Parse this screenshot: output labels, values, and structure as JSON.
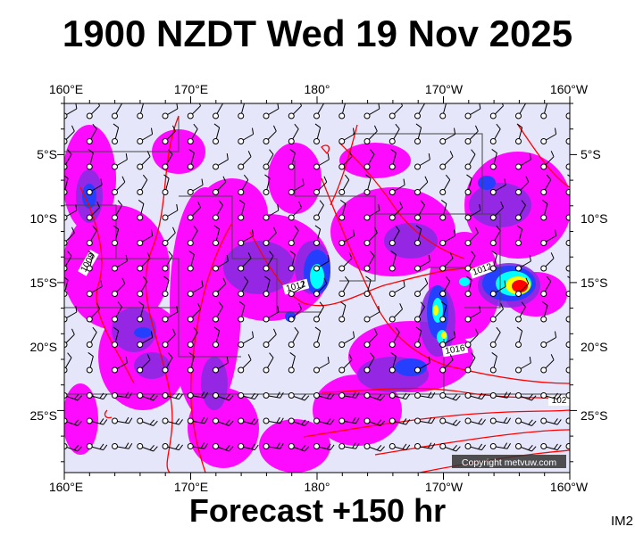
{
  "title": "1900 NZDT Wed 19 Nov 2025",
  "footer": "Forecast +150 hr",
  "image_tag": "IM2",
  "copyright": "Copyright metvuw.com",
  "axes": {
    "top_labels": [
      "160°E",
      "170°E",
      "180°",
      "170°W",
      "160°W"
    ],
    "bottom_labels": [
      "160°E",
      "170°E",
      "180°",
      "170°W",
      "160°W"
    ],
    "left_labels": [
      "5°S",
      "10°S",
      "15°S",
      "20°S",
      "25°S"
    ],
    "right_labels": [
      "5°S",
      "10°S",
      "15°S",
      "20°S",
      "25°S"
    ]
  },
  "isobar_labels": [
    "1008",
    "1012",
    "1012",
    "1016",
    "102"
  ],
  "colors": {
    "background": "#e6e6fa",
    "rain_light": "#ff00ff",
    "rain_moderate": "#8a2be2",
    "rain_heavy": "#1e40ff",
    "rain_very_heavy": "#00ffff",
    "rain_intense": "#ffff00",
    "rain_extreme": "#ff0000",
    "isobar": "#ff0000"
  }
}
